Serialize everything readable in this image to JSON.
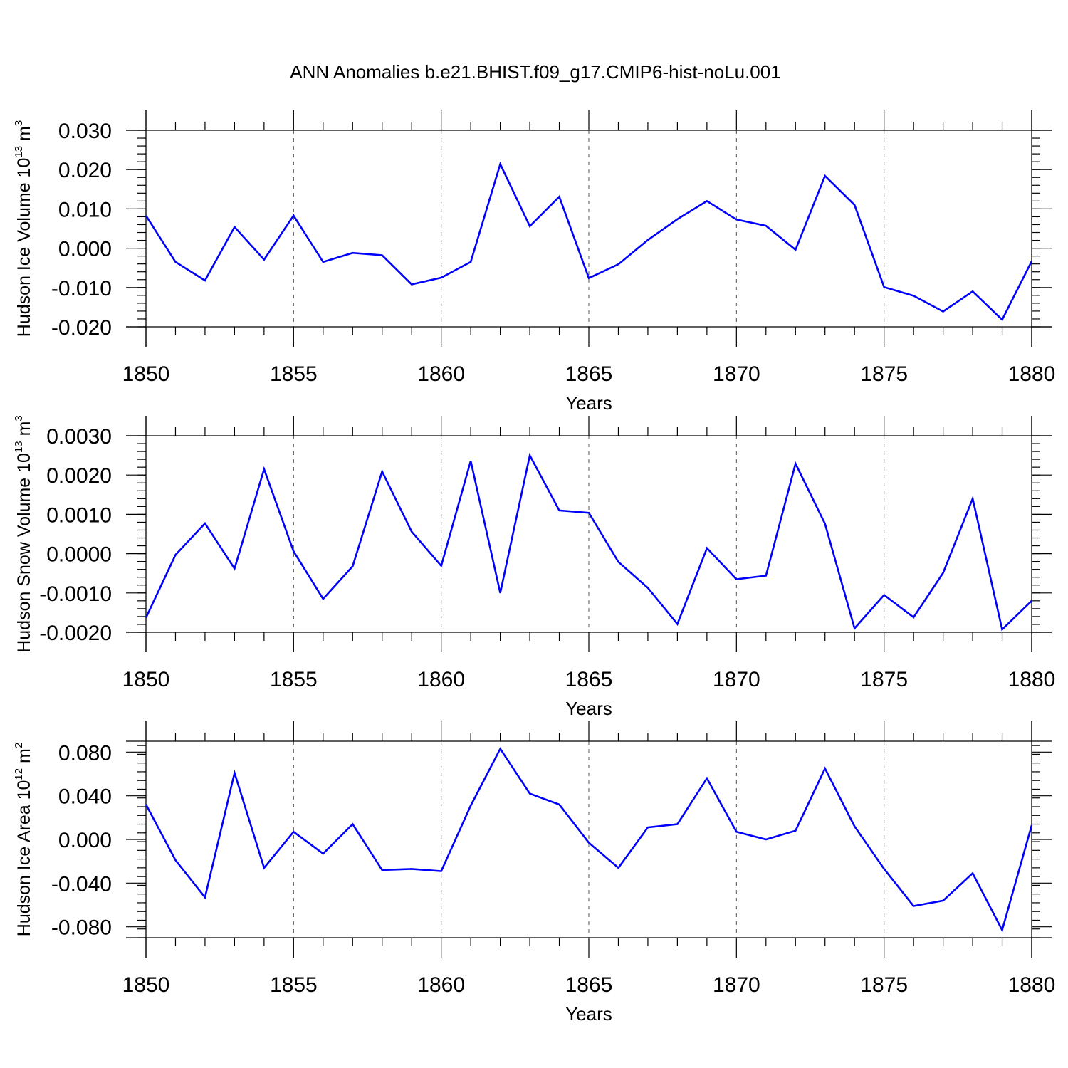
{
  "title": "ANN Anomalies b.e21.BHIST.f09_g17.CMIP6-hist-noLu.001",
  "chart_data": [
    {
      "type": "line",
      "ylabel_main": "Hudson Ice Volume 10",
      "ylabel_exp": "13",
      "ylabel_unit": " m",
      "ylabel_unit_exp": "3",
      "xlabel": "Years",
      "xlim": [
        1850,
        1880
      ],
      "ylim": [
        -0.02,
        0.03
      ],
      "xticks": [
        1850,
        1855,
        1860,
        1865,
        1870,
        1875,
        1880
      ],
      "xtick_labels": [
        "1850",
        "1855",
        "1860",
        "1865",
        "1870",
        "1875",
        "1880"
      ],
      "yticks": [
        -0.02,
        -0.01,
        0.0,
        0.01,
        0.02,
        0.03
      ],
      "ytick_labels": [
        "-0.020",
        "-0.010",
        "0.000",
        "0.010",
        "0.020",
        "0.030"
      ],
      "grid": "vertical dashed at major x ticks",
      "series": [
        {
          "name": "Hudson Ice Volume",
          "color": "#0000ff",
          "x": [
            1850,
            1851,
            1852,
            1853,
            1854,
            1855,
            1856,
            1857,
            1858,
            1859,
            1860,
            1861,
            1862,
            1863,
            1864,
            1865,
            1866,
            1867,
            1868,
            1869,
            1870,
            1871,
            1872,
            1873,
            1874,
            1875,
            1876,
            1877,
            1878,
            1879,
            1880
          ],
          "values": [
            0.0083,
            -0.0035,
            -0.0082,
            0.0054,
            -0.0029,
            0.0083,
            -0.0035,
            -0.0012,
            -0.0018,
            -0.0092,
            -0.0075,
            -0.0035,
            0.0214,
            0.0056,
            0.0131,
            -0.0076,
            -0.0041,
            0.0021,
            0.0074,
            0.012,
            0.0073,
            0.0057,
            -0.0004,
            0.0184,
            0.011,
            -0.0099,
            -0.0121,
            -0.0161,
            -0.011,
            -0.0182,
            -0.0033
          ]
        }
      ]
    },
    {
      "type": "line",
      "ylabel_main": "Hudson Snow Volume 10",
      "ylabel_exp": "13",
      "ylabel_unit": " m",
      "ylabel_unit_exp": "3",
      "xlabel": "Years",
      "xlim": [
        1850,
        1880
      ],
      "ylim": [
        -0.002,
        0.003
      ],
      "xticks": [
        1850,
        1855,
        1860,
        1865,
        1870,
        1875,
        1880
      ],
      "xtick_labels": [
        "1850",
        "1855",
        "1860",
        "1865",
        "1870",
        "1875",
        "1880"
      ],
      "yticks": [
        -0.002,
        -0.001,
        0.0,
        0.001,
        0.002,
        0.003
      ],
      "ytick_labels": [
        "-0.0020",
        "-0.0010",
        "0.0000",
        "0.0010",
        "0.0020",
        "0.0030"
      ],
      "grid": "vertical dashed at major x ticks",
      "series": [
        {
          "name": "Hudson Snow Volume",
          "color": "#0000ff",
          "x": [
            1850,
            1851,
            1852,
            1853,
            1854,
            1855,
            1856,
            1857,
            1858,
            1859,
            1860,
            1861,
            1862,
            1863,
            1864,
            1865,
            1866,
            1867,
            1868,
            1869,
            1870,
            1871,
            1872,
            1873,
            1874,
            1875,
            1876,
            1877,
            1878,
            1879,
            1880
          ],
          "values": [
            -0.00163,
            -3e-05,
            0.00077,
            -0.00038,
            0.00215,
            6e-05,
            -0.00115,
            -0.00032,
            0.00209,
            0.00056,
            -0.00031,
            0.00236,
            -0.001,
            0.0025,
            0.0011,
            0.00104,
            -0.00021,
            -0.00087,
            -0.00179,
            0.00014,
            -0.00065,
            -0.00056,
            0.00229,
            0.00076,
            -0.0019,
            -0.00105,
            -0.00162,
            -0.00049,
            0.0014,
            -0.00193,
            -0.0012
          ]
        }
      ]
    },
    {
      "type": "line",
      "ylabel_main": "Hudson Ice Area 10",
      "ylabel_exp": "12",
      "ylabel_unit": " m",
      "ylabel_unit_exp": "2",
      "xlabel": "Years",
      "xlim": [
        1850,
        1880
      ],
      "ylim": [
        -0.09,
        0.09
      ],
      "xticks": [
        1850,
        1855,
        1860,
        1865,
        1870,
        1875,
        1880
      ],
      "xtick_labels": [
        "1850",
        "1855",
        "1860",
        "1865",
        "1870",
        "1875",
        "1880"
      ],
      "yticks": [
        -0.08,
        -0.04,
        0.0,
        0.04,
        0.08
      ],
      "ytick_labels": [
        "-0.080",
        "-0.040",
        "0.000",
        "0.040",
        "0.080"
      ],
      "grid": "vertical dashed at major x ticks",
      "series": [
        {
          "name": "Hudson Ice Area",
          "color": "#0000ff",
          "x": [
            1850,
            1851,
            1852,
            1853,
            1854,
            1855,
            1856,
            1857,
            1858,
            1859,
            1860,
            1861,
            1862,
            1863,
            1864,
            1865,
            1866,
            1867,
            1868,
            1869,
            1870,
            1871,
            1872,
            1873,
            1874,
            1875,
            1876,
            1877,
            1878,
            1879,
            1880
          ],
          "values": [
            0.032,
            -0.019,
            -0.053,
            0.061,
            -0.026,
            0.007,
            -0.013,
            0.014,
            -0.028,
            -0.027,
            -0.029,
            0.031,
            0.083,
            0.042,
            0.032,
            -0.003,
            -0.026,
            0.011,
            0.014,
            0.056,
            0.007,
            0.0,
            0.008,
            0.065,
            0.012,
            -0.027,
            -0.061,
            -0.056,
            -0.031,
            -0.083,
            0.013
          ]
        }
      ]
    }
  ]
}
